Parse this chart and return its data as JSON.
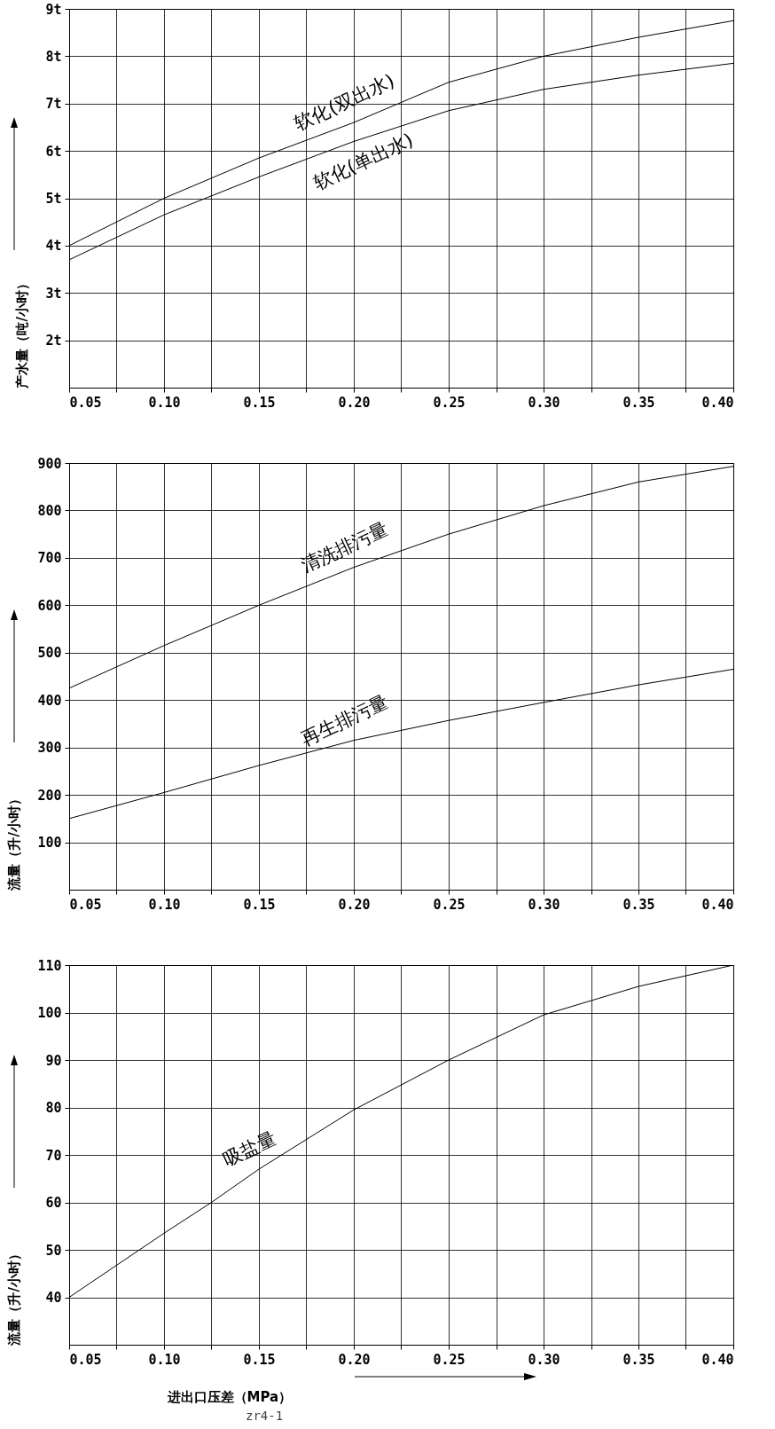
{
  "chart_data": [
    {
      "type": "line",
      "ylabel": "产水量（吨/小时）",
      "x": [
        0.05,
        0.1,
        0.15,
        0.2,
        0.25,
        0.3,
        0.35,
        0.4
      ],
      "xlim": [
        0.05,
        0.4
      ],
      "xticks": [
        {
          "value": 0.05,
          "label": "0.05"
        },
        {
          "value": 0.075,
          "label": null
        },
        {
          "value": 0.1,
          "label": "0.10"
        },
        {
          "value": 0.125,
          "label": null
        },
        {
          "value": 0.15,
          "label": "0.15"
        },
        {
          "value": 0.175,
          "label": null
        },
        {
          "value": 0.2,
          "label": "0.20"
        },
        {
          "value": 0.225,
          "label": null
        },
        {
          "value": 0.25,
          "label": "0.25"
        },
        {
          "value": 0.275,
          "label": null
        },
        {
          "value": 0.3,
          "label": "0.30"
        },
        {
          "value": 0.325,
          "label": null
        },
        {
          "value": 0.35,
          "label": "0.35"
        },
        {
          "value": 0.375,
          "label": null
        },
        {
          "value": 0.4,
          "label": "0.40"
        }
      ],
      "ylim": [
        1,
        9
      ],
      "yticks": [
        {
          "value": 2,
          "label": "2t"
        },
        {
          "value": 3,
          "label": "3t"
        },
        {
          "value": 4,
          "label": "4t"
        },
        {
          "value": 5,
          "label": "5t"
        },
        {
          "value": 6,
          "label": "6t"
        },
        {
          "value": 7,
          "label": "7t"
        },
        {
          "value": 8,
          "label": "8t"
        },
        {
          "value": 9,
          "label": "9t"
        }
      ],
      "grid": true,
      "series": [
        {
          "name": "软化(双出水)",
          "color": "#000000",
          "values": [
            4.0,
            5.0,
            5.85,
            6.6,
            7.45,
            8.0,
            8.4,
            8.75
          ]
        },
        {
          "name": "软化(单出水)",
          "color": "#000000",
          "values": [
            3.7,
            4.65,
            5.45,
            6.2,
            6.85,
            7.3,
            7.6,
            7.85
          ]
        }
      ]
    },
    {
      "type": "line",
      "ylabel": "流量（升/小时）",
      "x": [
        0.05,
        0.1,
        0.15,
        0.2,
        0.25,
        0.3,
        0.35,
        0.4
      ],
      "xlim": [
        0.05,
        0.4
      ],
      "xticks": [
        {
          "value": 0.05,
          "label": "0.05"
        },
        {
          "value": 0.075,
          "label": null
        },
        {
          "value": 0.1,
          "label": "0.10"
        },
        {
          "value": 0.125,
          "label": null
        },
        {
          "value": 0.15,
          "label": "0.15"
        },
        {
          "value": 0.175,
          "label": null
        },
        {
          "value": 0.2,
          "label": "0.20"
        },
        {
          "value": 0.225,
          "label": null
        },
        {
          "value": 0.25,
          "label": "0.25"
        },
        {
          "value": 0.275,
          "label": null
        },
        {
          "value": 0.3,
          "label": "0.30"
        },
        {
          "value": 0.325,
          "label": null
        },
        {
          "value": 0.35,
          "label": "0.35"
        },
        {
          "value": 0.375,
          "label": null
        },
        {
          "value": 0.4,
          "label": "0.40"
        }
      ],
      "ylim": [
        0,
        900
      ],
      "yticks": [
        100,
        200,
        300,
        400,
        500,
        600,
        700,
        800,
        900
      ],
      "grid": true,
      "series": [
        {
          "name": "清洗排污量",
          "color": "#000000",
          "values": [
            425,
            515,
            600,
            680,
            750,
            810,
            860,
            893
          ]
        },
        {
          "name": "再生排污量",
          "color": "#000000",
          "values": [
            150,
            205,
            262,
            315,
            357,
            395,
            432,
            465
          ]
        }
      ]
    },
    {
      "type": "line",
      "ylabel": "流量（升/小时）",
      "xlabel": "进出口压差（MPa）",
      "x": [
        0.05,
        0.1,
        0.125,
        0.15,
        0.2,
        0.25,
        0.3,
        0.35,
        0.4
      ],
      "xlim": [
        0.05,
        0.4
      ],
      "xticks": [
        {
          "value": 0.05,
          "label": "0.05"
        },
        {
          "value": 0.075,
          "label": null
        },
        {
          "value": 0.1,
          "label": "0.10"
        },
        {
          "value": 0.125,
          "label": null
        },
        {
          "value": 0.15,
          "label": "0.15"
        },
        {
          "value": 0.175,
          "label": null
        },
        {
          "value": 0.2,
          "label": "0.20"
        },
        {
          "value": 0.225,
          "label": null
        },
        {
          "value": 0.25,
          "label": "0.25"
        },
        {
          "value": 0.275,
          "label": null
        },
        {
          "value": 0.3,
          "label": "0.30"
        },
        {
          "value": 0.325,
          "label": null
        },
        {
          "value": 0.35,
          "label": "0.35"
        },
        {
          "value": 0.375,
          "label": null
        },
        {
          "value": 0.4,
          "label": "0.40"
        }
      ],
      "ylim": [
        30,
        110
      ],
      "yticks": [
        40,
        50,
        60,
        70,
        80,
        90,
        100,
        110
      ],
      "grid": true,
      "annotations": [
        "zr4-1"
      ],
      "series": [
        {
          "name": "吸盐量",
          "color": "#000000",
          "values": [
            40,
            53.5,
            60,
            67,
            79.5,
            90,
            99.5,
            105.5,
            110
          ]
        }
      ]
    }
  ]
}
